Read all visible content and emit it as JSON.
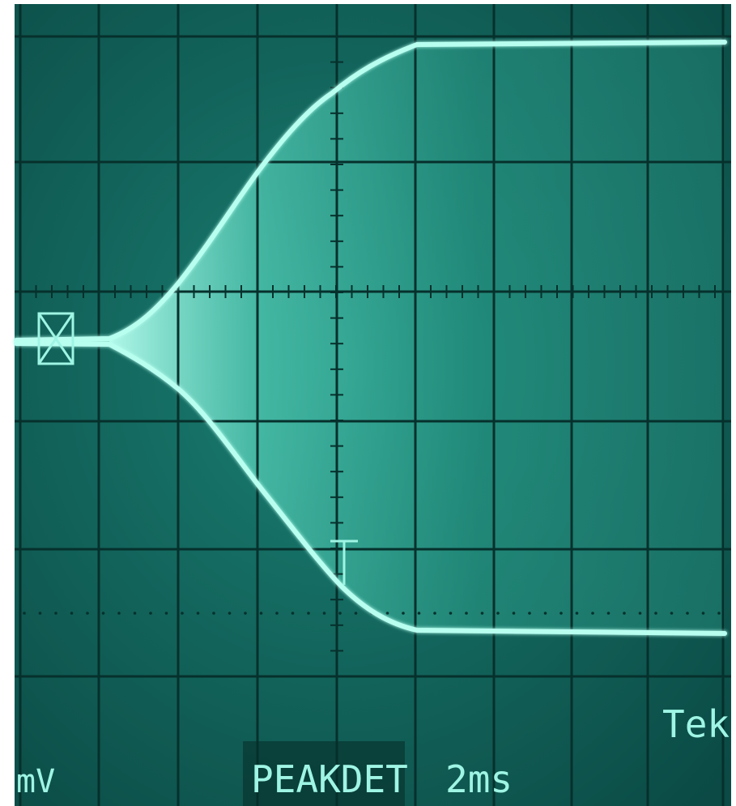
{
  "screen": {
    "unit": "mV",
    "mode": "PEAKDET",
    "timebase": "2ms",
    "brand": "Tek"
  }
}
